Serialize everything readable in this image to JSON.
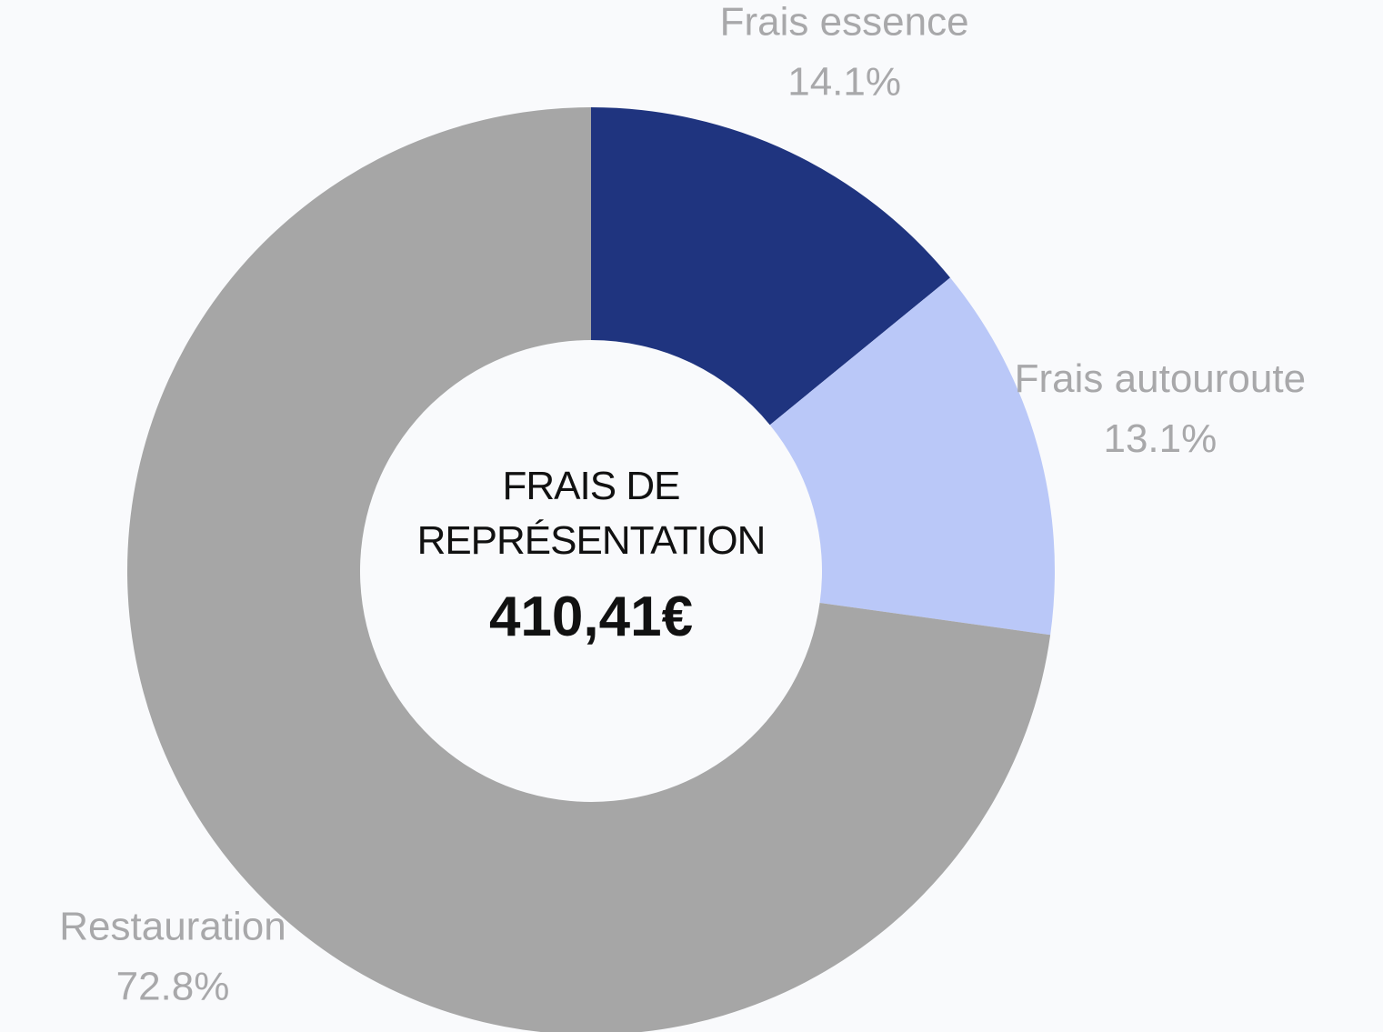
{
  "chart_data": {
    "type": "donut",
    "title": "FRAIS DE REPRÉSENTATION",
    "total_label": "410,41€",
    "categories": [
      "Frais essence",
      "Frais autouroute",
      "Restauration"
    ],
    "values": [
      14.1,
      13.1,
      72.8
    ],
    "value_labels": [
      "14.1%",
      "13.1%",
      "72.8%"
    ],
    "colors": [
      "#1f347f",
      "#bac8f8",
      "#a6a6a6"
    ]
  }
}
